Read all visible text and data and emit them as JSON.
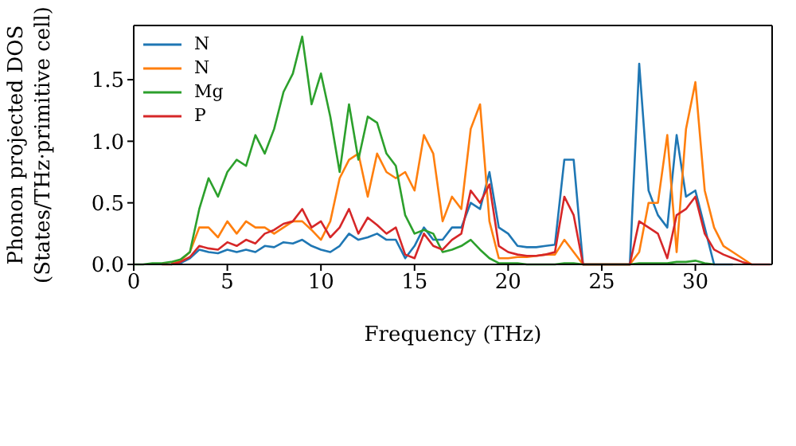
{
  "chart_data": {
    "type": "line",
    "xlabel": "Frequency (THz)",
    "ylabel": "Phonon projected DOS\n(States/THz·primitive cell)",
    "x": [
      0,
      0.5,
      1,
      1.5,
      2,
      2.5,
      3,
      3.5,
      4,
      4.5,
      5,
      5.5,
      6,
      6.5,
      7,
      7.5,
      8,
      8.5,
      9,
      9.5,
      10,
      10.5,
      11,
      11.5,
      12,
      12.5,
      13,
      13.5,
      14,
      14.5,
      15,
      15.5,
      16,
      16.5,
      17,
      17.5,
      18,
      18.5,
      19,
      19.5,
      20,
      20.5,
      21,
      21.5,
      22,
      22.5,
      23,
      23.5,
      24,
      24.5,
      25,
      25.5,
      26,
      26.5,
      27,
      27.5,
      28,
      28.5,
      29,
      29.5,
      30,
      30.5,
      31,
      31.5,
      32,
      32.5,
      33,
      33.5,
      34
    ],
    "series": [
      {
        "name": "N",
        "color": "#1f77b4",
        "values": [
          null,
          null,
          null,
          null,
          0,
          0.01,
          0.05,
          0.12,
          0.1,
          0.09,
          0.12,
          0.1,
          0.12,
          0.1,
          0.15,
          0.14,
          0.18,
          0.17,
          0.2,
          0.15,
          0.12,
          0.1,
          0.15,
          0.25,
          0.2,
          0.22,
          0.25,
          0.2,
          0.2,
          0.05,
          0.15,
          0.3,
          0.2,
          0.2,
          0.3,
          0.3,
          0.5,
          0.45,
          0.75,
          0.3,
          0.25,
          0.15,
          0.14,
          0.14,
          0.15,
          0.16,
          0.85,
          0.85,
          0,
          0,
          0,
          0,
          0,
          0,
          1.63,
          0.6,
          0.4,
          0.3,
          1.05,
          0.55,
          0.6,
          0.3,
          0,
          0,
          0,
          null,
          null,
          null,
          null
        ]
      },
      {
        "name": "N",
        "color": "#ff7f0e",
        "values": [
          null,
          null,
          null,
          null,
          0.01,
          0.03,
          0.1,
          0.3,
          0.3,
          0.22,
          0.35,
          0.25,
          0.35,
          0.3,
          0.3,
          0.25,
          0.3,
          0.35,
          0.35,
          0.28,
          0.2,
          0.35,
          0.7,
          0.85,
          0.9,
          0.55,
          0.9,
          0.75,
          0.7,
          0.75,
          0.6,
          1.05,
          0.9,
          0.35,
          0.55,
          0.45,
          1.1,
          1.3,
          0.35,
          0.05,
          0.05,
          0.06,
          0.06,
          0.07,
          0.08,
          0.08,
          0.2,
          0.1,
          0,
          0,
          0,
          0,
          0,
          0,
          0.1,
          0.5,
          0.5,
          1.05,
          0.1,
          1.1,
          1.48,
          0.6,
          0.3,
          0.15,
          0.1,
          0.05,
          0,
          null,
          null
        ]
      },
      {
        "name": "Mg",
        "color": "#2ca02c",
        "values": [
          0,
          0,
          0.01,
          0.01,
          0.02,
          0.04,
          0.1,
          0.45,
          0.7,
          0.55,
          0.75,
          0.85,
          0.8,
          1.05,
          0.9,
          1.1,
          1.4,
          1.55,
          1.85,
          1.3,
          1.55,
          1.2,
          0.75,
          1.3,
          0.85,
          1.2,
          1.15,
          0.9,
          0.8,
          0.4,
          0.25,
          0.28,
          0.25,
          0.1,
          0.12,
          0.15,
          0.2,
          0.12,
          0.05,
          0.01,
          0.01,
          0.01,
          0,
          0,
          0,
          0,
          0.01,
          0.01,
          0,
          0,
          0,
          0,
          0,
          0,
          0.01,
          0.01,
          0.01,
          0.01,
          0.02,
          0.02,
          0.03,
          0.01,
          0,
          null,
          null,
          null,
          null,
          null,
          null
        ]
      },
      {
        "name": "P",
        "color": "#d62728",
        "values": [
          null,
          null,
          null,
          0,
          0,
          0.02,
          0.06,
          0.15,
          0.13,
          0.12,
          0.18,
          0.15,
          0.2,
          0.17,
          0.25,
          0.28,
          0.33,
          0.35,
          0.45,
          0.3,
          0.35,
          0.22,
          0.3,
          0.45,
          0.25,
          0.38,
          0.32,
          0.25,
          0.3,
          0.08,
          0.05,
          0.25,
          0.15,
          0.12,
          0.2,
          0.25,
          0.6,
          0.5,
          0.65,
          0.15,
          0.1,
          0.08,
          0.07,
          0.07,
          0.08,
          0.1,
          0.55,
          0.4,
          0,
          0,
          0,
          0,
          0,
          0,
          0.35,
          0.3,
          0.25,
          0.05,
          0.4,
          0.45,
          0.55,
          0.25,
          0.12,
          0.08,
          0.05,
          0.02,
          0,
          0,
          0
        ]
      }
    ],
    "xlim": [
      0,
      34.1
    ],
    "xticks": [
      0,
      5,
      10,
      15,
      20,
      25,
      30
    ],
    "ylim": [
      0,
      1.94
    ],
    "yticks": [
      {
        "value": 0,
        "label": "0.0"
      },
      0.5,
      {
        "value": 1,
        "label": "1.0"
      },
      1.5
    ],
    "grid": false,
    "legend": "top left",
    "marker": "none",
    "line_style": "solid"
  }
}
